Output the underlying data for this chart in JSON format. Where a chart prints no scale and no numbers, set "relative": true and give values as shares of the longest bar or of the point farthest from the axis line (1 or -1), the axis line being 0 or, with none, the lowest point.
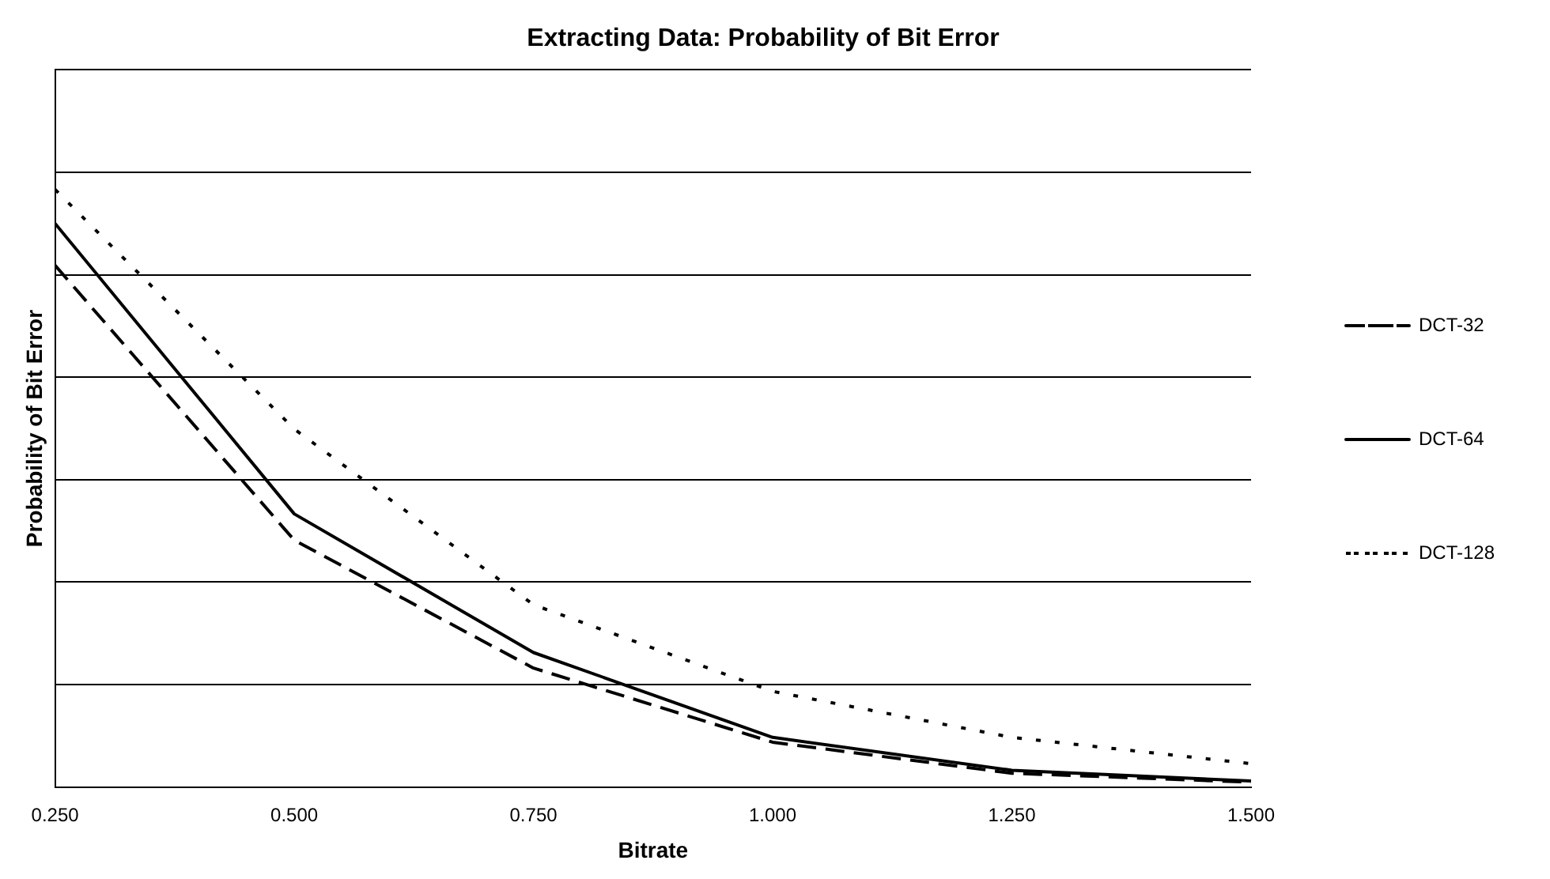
{
  "chart_data": {
    "type": "line",
    "title": "Extracting Data: Probability of Bit Error",
    "xlabel": "Bitrate",
    "ylabel": "Probability of Bit Error",
    "relative": true,
    "x": [
      0.25,
      0.5,
      0.75,
      1.0,
      1.25,
      1.5
    ],
    "xlim": [
      0.25,
      1.5
    ],
    "xticks": [
      {
        "value": 0.25,
        "label": "0.250"
      },
      {
        "value": 0.5,
        "label": "0.500"
      },
      {
        "value": 0.75,
        "label": "0.750"
      },
      {
        "value": 1.0,
        "label": "1.000"
      },
      {
        "value": 1.25,
        "label": "1.250"
      },
      {
        "value": 1.5,
        "label": "1.500"
      }
    ],
    "series": [
      {
        "name": "DCT-32",
        "color": "#000000",
        "line_style": "dashed",
        "values": [
          0.873,
          0.413,
          0.199,
          0.075,
          0.023,
          0.008
        ]
      },
      {
        "name": "DCT-64",
        "color": "#000000",
        "line_style": "solid",
        "values": [
          0.943,
          0.457,
          0.225,
          0.083,
          0.028,
          0.01
        ]
      },
      {
        "name": "DCT-128",
        "color": "#000000",
        "line_style": "dotted",
        "values": [
          1,
          0.599,
          0.305,
          0.16,
          0.083,
          0.039
        ]
      }
    ],
    "grid": "y",
    "legend": "right",
    "marker": "none",
    "tick_labels": "x"
  }
}
